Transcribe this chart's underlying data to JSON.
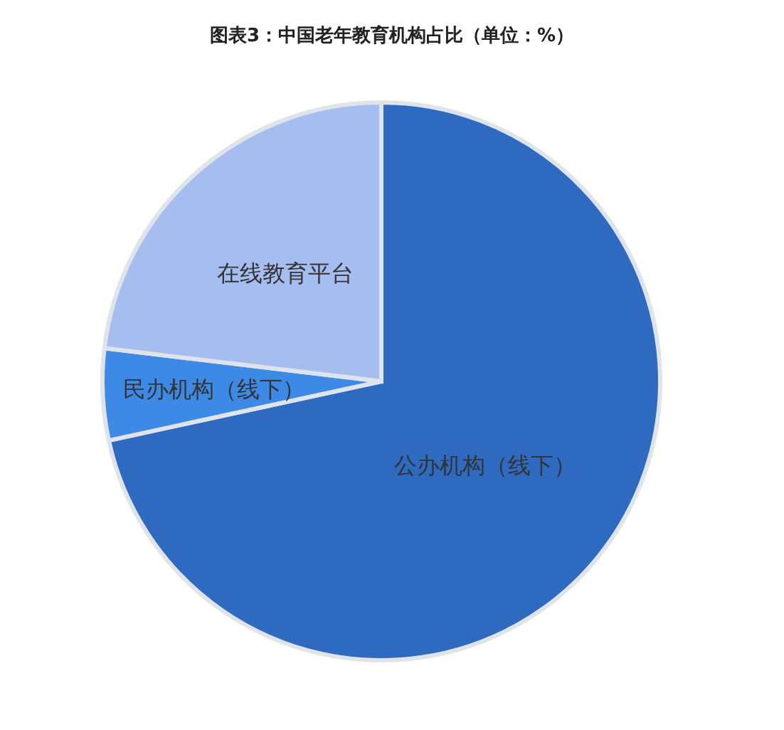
{
  "chart_data": {
    "type": "pie",
    "title": "图表3：中国老年教育机构占比（单位：%）",
    "categories": [
      "公办机构（线下）",
      "民办机构（线下）",
      "在线教育平台"
    ],
    "values": [
      71.6,
      5.3,
      23.1
    ],
    "colors": [
      "#2e6bc0",
      "#3d8ae6",
      "#a6bdf0"
    ]
  }
}
